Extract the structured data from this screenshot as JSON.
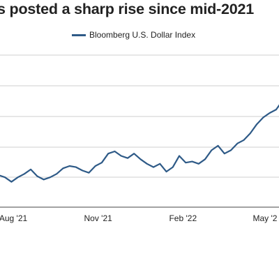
{
  "chart_data": {
    "type": "line",
    "title": "s posted a sharp rise since mid-2021",
    "xlabel": "",
    "ylabel": "",
    "legend_position": "top-center",
    "grid": true,
    "colors": {
      "series": "#2e5a87",
      "grid": "#cfcfcf",
      "axis": "#444444"
    },
    "x_ticks": [
      "Aug '21",
      "Nov '21",
      "Feb '22",
      "May '2"
    ],
    "series": [
      {
        "name": "Bloomberg U.S. Dollar Index",
        "x": [
          "2021-07-16",
          "2021-07-23",
          "2021-07-30",
          "2021-08-06",
          "2021-08-13",
          "2021-08-20",
          "2021-08-27",
          "2021-09-03",
          "2021-09-10",
          "2021-09-17",
          "2021-09-24",
          "2021-10-01",
          "2021-10-08",
          "2021-10-15",
          "2021-10-22",
          "2021-10-29",
          "2021-11-05",
          "2021-11-12",
          "2021-11-19",
          "2021-11-26",
          "2021-12-03",
          "2021-12-10",
          "2021-12-17",
          "2021-12-24",
          "2021-12-31",
          "2022-01-07",
          "2022-01-14",
          "2022-01-21",
          "2022-01-28",
          "2022-02-04",
          "2022-02-11",
          "2022-02-18",
          "2022-02-25",
          "2022-03-04",
          "2022-03-11",
          "2022-03-18",
          "2022-03-25",
          "2022-04-01",
          "2022-04-08",
          "2022-04-15",
          "2022-04-22",
          "2022-04-29",
          "2022-05-06",
          "2022-05-13",
          "2022-05-20",
          "2022-05-27"
        ],
        "values": [
          1149,
          1147,
          1143,
          1147,
          1150,
          1154,
          1148,
          1145,
          1147,
          1150,
          1155,
          1157,
          1156,
          1153,
          1151,
          1157,
          1160,
          1168,
          1170,
          1166,
          1164,
          1168,
          1163,
          1159,
          1156,
          1159,
          1152,
          1156,
          1166,
          1160,
          1161,
          1159,
          1163,
          1171,
          1175,
          1168,
          1171,
          1177,
          1180,
          1186,
          1194,
          1200,
          1204,
          1207,
          1215,
          1211
        ]
      }
    ]
  }
}
